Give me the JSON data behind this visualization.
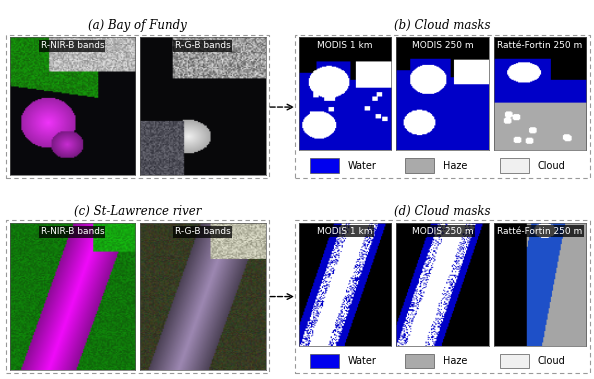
{
  "title_a": "(a) Bay of Fundy",
  "title_b": "(b) Cloud masks",
  "title_c": "(c) St-Lawrence river",
  "title_d": "(d) Cloud masks",
  "label_rnir": "R-NIR-B bands",
  "label_rgb": "R-G-B bands",
  "label_modis1km": "MODIS 1 km",
  "label_modis250": "MODIS 250 m",
  "label_ratte": "Ratté-Fortin 250 m",
  "legend_water": "Water",
  "legend_haze": "Haze",
  "legend_cloud": "Cloud",
  "water_color": "#0000EE",
  "haze_color": "#AAAAAA",
  "cloud_color": "#F0F0F0",
  "bg_color": "#FFFFFF",
  "border_color": "#888888",
  "text_color_dark": "#000000",
  "text_color_light": "#FFFFFF",
  "title_fontsize": 8.5,
  "label_fontsize": 6.5,
  "legend_fontsize": 7.0
}
